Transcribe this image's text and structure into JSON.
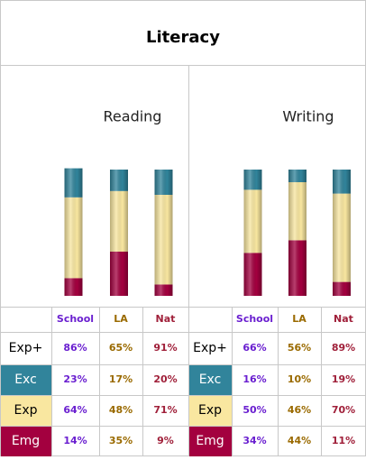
{
  "title": "Literacy",
  "chart_data": [
    {
      "type": "bar",
      "title": "Reading",
      "categories": [
        "School",
        "LA",
        "Nat"
      ],
      "category_colors": [
        "#6a1fd0",
        "#9a6a00",
        "#a0203a"
      ],
      "ylim": [
        0,
        100
      ],
      "series": [
        {
          "name": "Exp+",
          "values": [
            86,
            65,
            91
          ],
          "value_labels": [
            "86%",
            "65%",
            "91%"
          ]
        },
        {
          "name": "Exc",
          "color": "#31849b",
          "values": [
            23,
            17,
            20
          ],
          "value_labels": [
            "23%",
            "17%",
            "20%"
          ]
        },
        {
          "name": "Exp",
          "color": "#f9e7a0",
          "values": [
            64,
            48,
            71
          ],
          "value_labels": [
            "64%",
            "48%",
            "71%"
          ]
        },
        {
          "name": "Emg",
          "color": "#a3003f",
          "values": [
            14,
            35,
            9
          ],
          "value_labels": [
            "14%",
            "35%",
            "9%"
          ]
        }
      ]
    },
    {
      "type": "bar",
      "title": "Writing",
      "categories": [
        "School",
        "LA",
        "Nat"
      ],
      "category_colors": [
        "#6a1fd0",
        "#9a6a00",
        "#a0203a"
      ],
      "ylim": [
        0,
        100
      ],
      "series": [
        {
          "name": "Exp+",
          "values": [
            66,
            56,
            89
          ],
          "value_labels": [
            "66%",
            "56%",
            "89%"
          ]
        },
        {
          "name": "Exc",
          "color": "#31849b",
          "values": [
            16,
            10,
            19
          ],
          "value_labels": [
            "16%",
            "10%",
            "19%"
          ]
        },
        {
          "name": "Exp",
          "color": "#f9e7a0",
          "values": [
            50,
            46,
            70
          ],
          "value_labels": [
            "50%",
            "46%",
            "70%"
          ]
        },
        {
          "name": "Emg",
          "color": "#a3003f",
          "values": [
            34,
            44,
            11
          ],
          "value_labels": [
            "34%",
            "44%",
            "11%"
          ]
        }
      ]
    }
  ]
}
